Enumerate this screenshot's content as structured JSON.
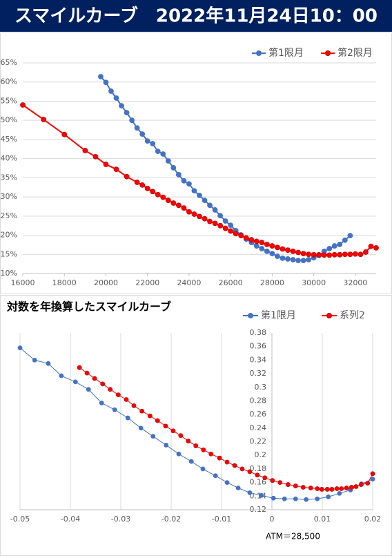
{
  "header": {
    "title": "スマイルカーブ　2022年11月24日10：00"
  },
  "chart_data": [
    {
      "type": "line",
      "xlim": [
        16000,
        33000
      ],
      "xticks": [
        16000,
        18000,
        20000,
        22000,
        24000,
        26000,
        28000,
        30000,
        32000
      ],
      "ylim": [
        10,
        65
      ],
      "yticks": [
        {
          "value": 10,
          "label": "10%"
        },
        {
          "value": 15,
          "label": "15%"
        },
        {
          "value": 20,
          "label": "20%"
        },
        {
          "value": 25,
          "label": "25%"
        },
        {
          "value": 30,
          "label": "30%"
        },
        {
          "value": 35,
          "label": "35%"
        },
        {
          "value": 40,
          "label": "40%"
        },
        {
          "value": 45,
          "label": "45%"
        },
        {
          "value": 50,
          "label": "50%"
        },
        {
          "value": 55,
          "label": "55%"
        },
        {
          "value": 60,
          "label": "60%"
        },
        {
          "value": 65,
          "label": "65%"
        }
      ],
      "grid": "y",
      "legend": "top-right",
      "series": [
        {
          "name": "第1限月",
          "color": "#4472c4",
          "x": [
            19750,
            20000,
            20250,
            20500,
            20750,
            21000,
            21250,
            21500,
            21750,
            22000,
            22250,
            22500,
            22750,
            23000,
            23250,
            23500,
            23750,
            24000,
            24250,
            24500,
            24750,
            25000,
            25250,
            25500,
            25750,
            26000,
            26250,
            26500,
            26750,
            27000,
            27250,
            27500,
            27750,
            28000,
            28250,
            28500,
            28750,
            29000,
            29250,
            29500,
            29750,
            30000,
            30250,
            30500,
            30750,
            31000,
            31250,
            31500,
            31750
          ],
          "values": [
            61.4,
            59.9,
            57.6,
            55.8,
            53.8,
            52.0,
            50.0,
            48.0,
            46.4,
            44.6,
            43.9,
            41.9,
            41.2,
            39.4,
            37.6,
            35.8,
            34.2,
            33.4,
            31.6,
            30.4,
            29.1,
            27.8,
            26.6,
            25.1,
            23.7,
            22.6,
            21.2,
            20.1,
            19.0,
            18.1,
            17.2,
            16.5,
            15.8,
            15.2,
            14.5,
            14.0,
            13.8,
            13.6,
            13.4,
            13.4,
            13.6,
            14.1,
            14.7,
            15.8,
            16.5,
            17.2,
            17.6,
            18.7,
            19.9
          ]
        },
        {
          "name": "第2限月",
          "color": "#ff0000",
          "x": [
            16000,
            17000,
            18000,
            19000,
            19500,
            20000,
            20500,
            21000,
            21500,
            21750,
            22000,
            22250,
            22500,
            22750,
            23000,
            23250,
            23500,
            23750,
            24000,
            24250,
            24500,
            24750,
            25000,
            25250,
            25500,
            25750,
            26000,
            26250,
            26500,
            26750,
            27000,
            27250,
            27500,
            27750,
            28000,
            28250,
            28500,
            28750,
            29000,
            29250,
            29500,
            29750,
            30000,
            30250,
            30500,
            30750,
            31000,
            31250,
            31500,
            31750,
            32000,
            32250,
            32500,
            32750,
            33000
          ],
          "values": [
            54.0,
            50.2,
            46.3,
            42.1,
            40.5,
            38.5,
            37.2,
            35.3,
            33.8,
            33.1,
            32.2,
            31.4,
            30.6,
            29.9,
            29.1,
            28.4,
            27.8,
            27.1,
            26.1,
            25.5,
            24.9,
            24.3,
            23.6,
            23.1,
            22.5,
            21.8,
            21.1,
            20.4,
            19.9,
            19.3,
            18.8,
            18.4,
            18.1,
            17.6,
            17.2,
            16.8,
            16.4,
            16.1,
            15.8,
            15.5,
            15.2,
            15.0,
            14.9,
            14.9,
            14.8,
            14.8,
            14.9,
            14.9,
            15.0,
            15.0,
            15.1,
            15.0,
            15.6,
            17.1,
            16.7
          ]
        }
      ]
    },
    {
      "type": "line",
      "title": "対数を年換算したスマイルカーブ",
      "annotation": "ATM＝28,500",
      "xlim": [
        -0.05,
        0.02
      ],
      "xticks": [
        -0.05,
        -0.04,
        -0.03,
        -0.02,
        -0.01,
        0,
        0.01,
        0.02
      ],
      "ylim": [
        0.12,
        0.38
      ],
      "yticks": [
        0.12,
        0.14,
        0.16,
        0.18,
        0.2,
        0.22,
        0.24,
        0.26,
        0.28,
        0.3,
        0.32,
        0.34,
        0.36,
        0.38
      ],
      "y_axis_cross": 0,
      "grid": "x",
      "legend": "top-right",
      "series": [
        {
          "name": "第1限月",
          "color": "#4472c4",
          "x": [
            -0.05,
            -0.0471,
            -0.0444,
            -0.0418,
            -0.039,
            -0.0364,
            -0.0338,
            -0.0312,
            -0.0286,
            -0.026,
            -0.0236,
            -0.021,
            -0.0185,
            -0.016,
            -0.0137,
            -0.0112,
            -0.0089,
            -0.0067,
            -0.0044,
            -0.0021,
            0.0003,
            0.0025,
            0.0047,
            0.0068,
            0.009,
            0.0112,
            0.0134,
            0.0156,
            0.0178,
            0.02
          ],
          "values": [
            0.358,
            0.34,
            0.335,
            0.317,
            0.308,
            0.297,
            0.277,
            0.267,
            0.255,
            0.24,
            0.228,
            0.215,
            0.202,
            0.191,
            0.18,
            0.17,
            0.16,
            0.152,
            0.145,
            0.141,
            0.137,
            0.136,
            0.136,
            0.135,
            0.136,
            0.139,
            0.144,
            0.149,
            0.158,
            0.165
          ]
        },
        {
          "name": "系列2",
          "color": "#ff0000",
          "x": [
            -0.0382,
            -0.0367,
            -0.0352,
            -0.0336,
            -0.0321,
            -0.0305,
            -0.0289,
            -0.0274,
            -0.0258,
            -0.0242,
            -0.0227,
            -0.0211,
            -0.0196,
            -0.0181,
            -0.0166,
            -0.0151,
            -0.0136,
            -0.0121,
            -0.0104,
            -0.0089,
            -0.0074,
            -0.0059,
            -0.0044,
            -0.0029,
            -0.0014,
            0.0001,
            0.0016,
            0.0032,
            0.0047,
            0.0062,
            0.0077,
            0.009,
            0.0099,
            0.011,
            0.0119,
            0.0129,
            0.0138,
            0.0148,
            0.0158,
            0.0167,
            0.0177,
            0.019,
            0.02
          ],
          "values": [
            0.329,
            0.321,
            0.313,
            0.305,
            0.297,
            0.289,
            0.282,
            0.273,
            0.265,
            0.258,
            0.251,
            0.243,
            0.236,
            0.229,
            0.221,
            0.214,
            0.208,
            0.202,
            0.196,
            0.19,
            0.185,
            0.18,
            0.176,
            0.171,
            0.167,
            0.163,
            0.16,
            0.157,
            0.155,
            0.153,
            0.152,
            0.151,
            0.15,
            0.15,
            0.15,
            0.151,
            0.151,
            0.152,
            0.153,
            0.154,
            0.157,
            0.159,
            0.173
          ]
        }
      ]
    }
  ]
}
